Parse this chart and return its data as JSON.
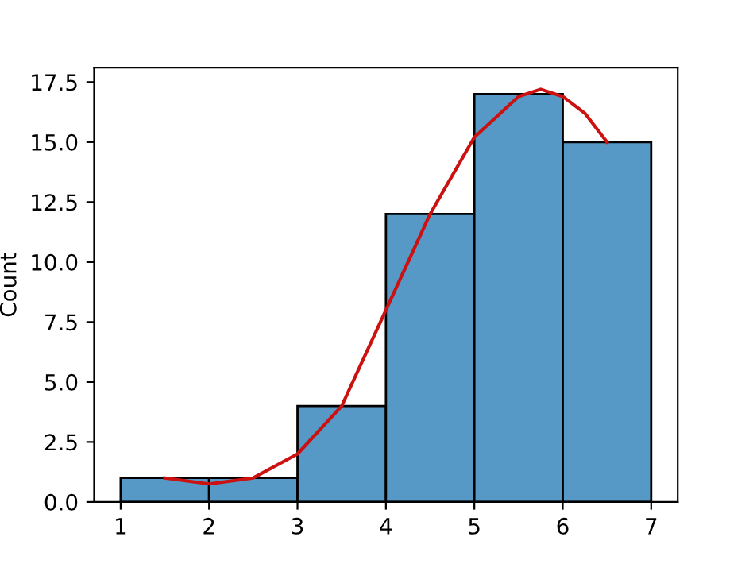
{
  "chart_data": {
    "type": "histogram",
    "ylabel": "Count",
    "bins": [
      1,
      2,
      3,
      4,
      5,
      6,
      7
    ],
    "series": [
      {
        "color": "#5799c6",
        "values": [
          1,
          1,
          4,
          12,
          17,
          15
        ]
      },
      {
        "type": "line",
        "color": "#cc1111",
        "x": [
          1.5,
          2,
          2.5,
          3,
          3.5,
          4,
          4.5,
          5,
          5.5,
          5.75,
          6,
          6.25,
          6.5
        ],
        "values": [
          1.0,
          0.75,
          1.0,
          2.0,
          4.0,
          8.0,
          12.0,
          15.2,
          16.9,
          17.2,
          16.9,
          16.2,
          15.0
        ]
      }
    ],
    "xlim": [
      0.7,
      7.3
    ],
    "ylim": [
      0,
      18.1
    ],
    "xticks": [
      1,
      2,
      3,
      4,
      5,
      6,
      7
    ],
    "yticks": [
      {
        "value": 0,
        "label": "0.0"
      },
      {
        "value": 2.5,
        "label": "2.5"
      },
      {
        "value": 5,
        "label": "5.0"
      },
      {
        "value": 7.5,
        "label": "7.5"
      },
      {
        "value": 10,
        "label": "10.0"
      },
      {
        "value": 12.5,
        "label": "12.5"
      },
      {
        "value": 15,
        "label": "15.0"
      },
      {
        "value": 17.5,
        "label": "17.5"
      }
    ]
  }
}
